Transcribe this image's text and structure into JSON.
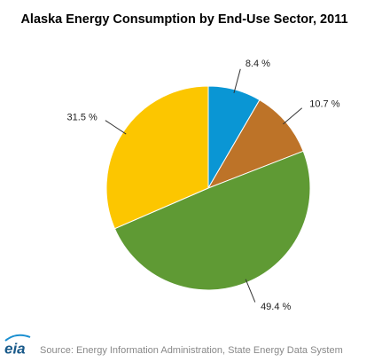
{
  "chart_data": {
    "type": "pie",
    "title": "Alaska Energy Consumption by End-Use Sector, 2011",
    "values": [
      8.4,
      10.7,
      49.4,
      31.5
    ],
    "value_labels": [
      "8.4 %",
      "10.7 %",
      "49.4 %",
      "31.5 %"
    ],
    "colors": [
      "#0a96d4",
      "#bd7328",
      "#5f9a34",
      "#fcc600"
    ],
    "start_angle": 0,
    "direction": "clockwise",
    "logo": "eia",
    "source": "Source: Energy Information Administration, State Energy Data System"
  }
}
